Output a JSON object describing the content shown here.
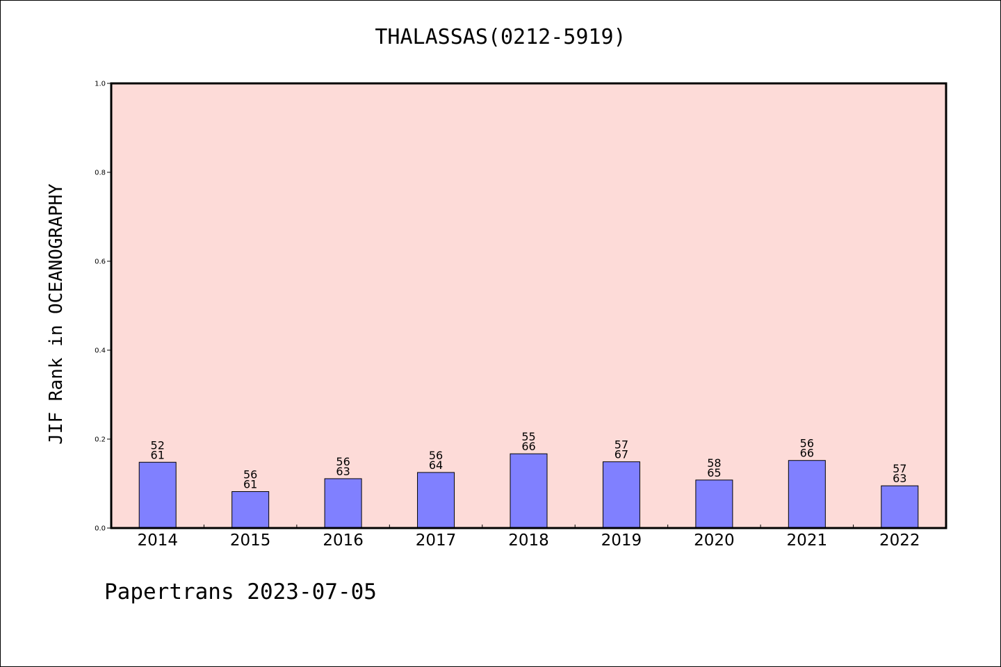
{
  "title": "THALASSAS(0212-5919)",
  "footer": "Papertrans 2023-07-05",
  "chart_data": {
    "type": "bar",
    "title": "THALASSAS(0212-5919)",
    "xlabel": "",
    "ylabel": "JIF Rank in OCEANOGRAPHY",
    "ylim": [
      0.0,
      1.0
    ],
    "yticks": [
      "0.0",
      "0.2",
      "0.4",
      "0.6",
      "0.8",
      "1.0"
    ],
    "categories": [
      "2014",
      "2015",
      "2016",
      "2017",
      "2018",
      "2019",
      "2020",
      "2021",
      "2022"
    ],
    "values": [
      0.148,
      0.082,
      0.111,
      0.125,
      0.167,
      0.149,
      0.108,
      0.152,
      0.095
    ],
    "labels_top": [
      "52",
      "56",
      "56",
      "56",
      "55",
      "57",
      "58",
      "56",
      "57"
    ],
    "labels_bottom": [
      "61",
      "61",
      "63",
      "64",
      "66",
      "67",
      "65",
      "66",
      "63"
    ],
    "grid": false,
    "colors": {
      "plot_background": "#fddbd8",
      "bar_fill": "#8080ff",
      "bar_stroke": "#000000"
    }
  }
}
